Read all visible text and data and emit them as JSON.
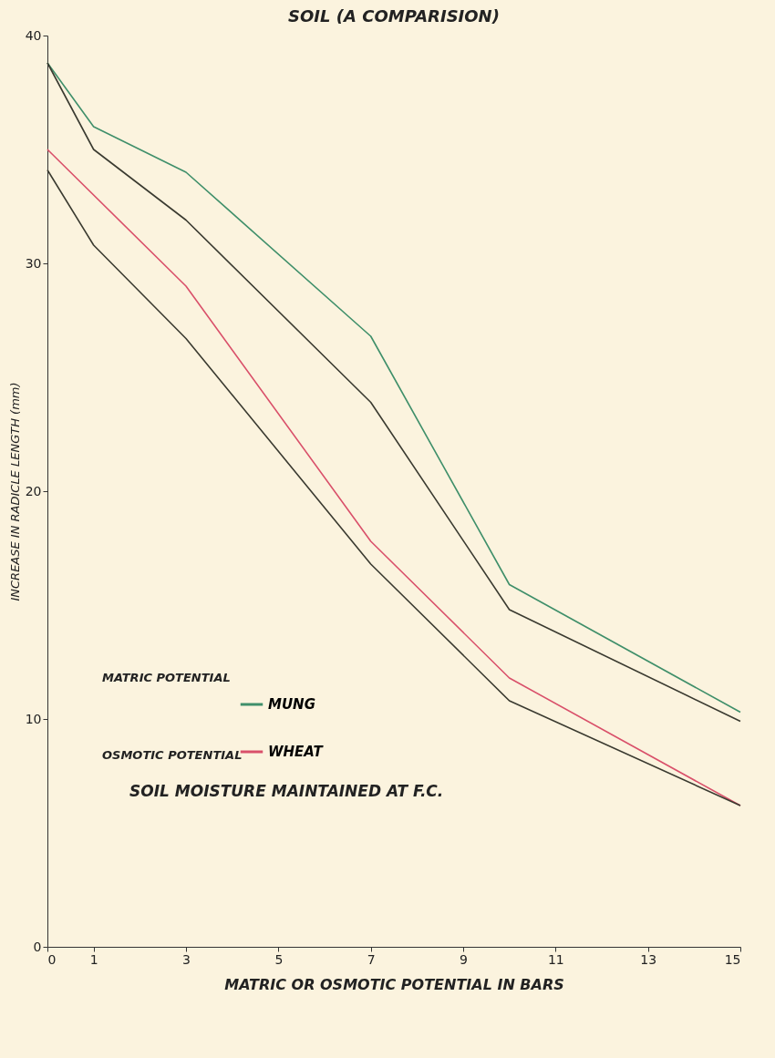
{
  "chart_data": {
    "type": "line",
    "title": "SOIL (A COMPARISION)",
    "xlabel": "MATRIC OR OSMOTIC POTENTIAL IN BARS",
    "ylabel": "INCREASE IN RADICLE LENGTH (mm)",
    "x": [
      0,
      1,
      3,
      7,
      10,
      15
    ],
    "series": [
      {
        "name": "MUNG",
        "color": "#3f8f6a",
        "values": [
          38.8,
          36,
          34,
          26.8,
          15.9,
          10.3
        ]
      },
      {
        "color": "#3a3a30",
        "values": [
          38.8,
          35,
          31.9,
          23.9,
          14.8,
          9.9
        ]
      },
      {
        "name": "WHEAT",
        "color": "#d9506a",
        "values": [
          35,
          null,
          29,
          17.8,
          11.8,
          6.2
        ]
      },
      {
        "color": "#3a3a30",
        "values": [
          34.1,
          30.8,
          26.7,
          16.8,
          10.8,
          6.2
        ]
      }
    ],
    "xlim": [
      0,
      15
    ],
    "xticks": [
      0,
      1,
      3,
      5,
      7,
      9,
      11,
      13,
      15
    ],
    "ylim": [
      0,
      40
    ],
    "yticks": [
      0,
      10,
      20,
      30,
      40
    ],
    "grid": false,
    "legend": "left",
    "marker": "none",
    "line_style": "solid",
    "annotations": [
      "MATRIC POTENTIAL",
      "OSMOTIC POTENTIAL",
      "SOIL MOISTURE MAINTAINED AT F.C."
    ]
  }
}
